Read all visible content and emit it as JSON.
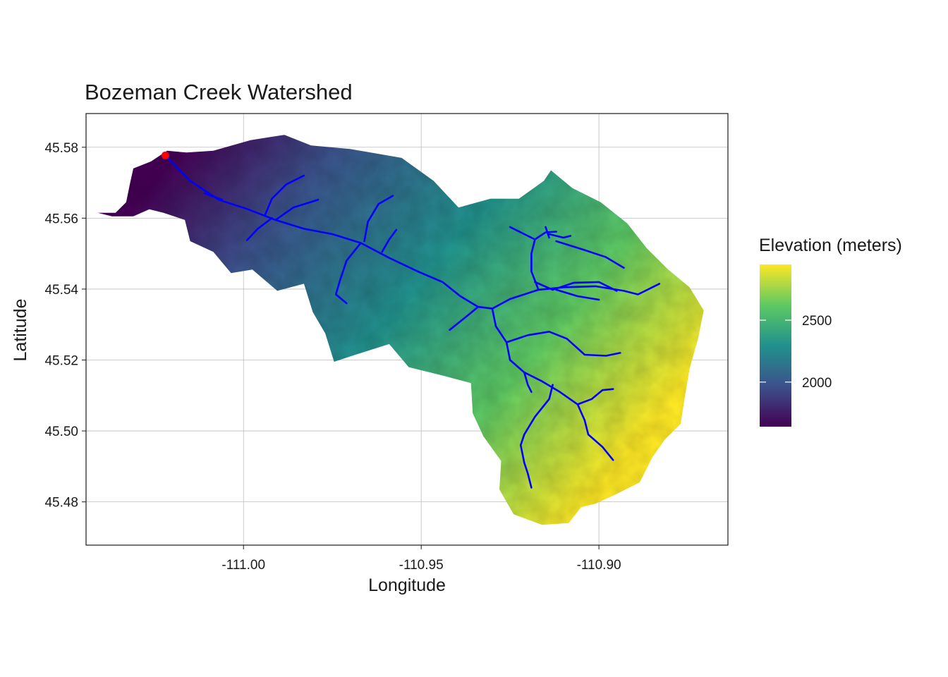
{
  "title": "Bozeman Creek Watershed",
  "x_axis": {
    "label": "Longitude",
    "ticks": [
      -111.0,
      -110.95,
      -110.9
    ],
    "tick_labels": [
      "-111.00",
      "-110.95",
      "-110.90"
    ],
    "range": [
      -111.0443,
      -110.8637
    ]
  },
  "y_axis": {
    "label": "Latitude",
    "ticks": [
      45.48,
      45.5,
      45.52,
      45.54,
      45.56,
      45.58
    ],
    "tick_labels": [
      "45.48",
      "45.50",
      "45.52",
      "45.54",
      "45.56",
      "45.58"
    ],
    "range": [
      45.4678,
      45.5895
    ]
  },
  "legend": {
    "title": "Elevation (meters)",
    "placement": "right",
    "range": [
      1640,
      2950
    ],
    "ticks": [
      2000,
      2500
    ],
    "tick_labels": [
      "2000",
      "2500"
    ],
    "colormap": [
      "#440154",
      "#3b528b",
      "#21918c",
      "#5ec962",
      "#fde725"
    ]
  },
  "colors": {
    "stream": "#0000ff",
    "outlet": "#ff0000",
    "panel_border": "#1a1a1a",
    "grid": "#bdbdbd"
  },
  "outlet": {
    "lon": -111.022,
    "lat": 45.5777
  },
  "watershed_boundary": [
    [
      -111.041,
      45.5615
    ],
    [
      -111.036,
      45.5615
    ],
    [
      -111.033,
      45.5645
    ],
    [
      -111.032,
      45.5695
    ],
    [
      -111.031,
      45.574
    ],
    [
      -111.026,
      45.576
    ],
    [
      -111.0215,
      45.579
    ],
    [
      -111.016,
      45.5785
    ],
    [
      -111.0085,
      45.579
    ],
    [
      -110.998,
      45.582
    ],
    [
      -110.9885,
      45.5835
    ],
    [
      -110.981,
      45.5805
    ],
    [
      -110.97,
      45.5795
    ],
    [
      -110.9555,
      45.577
    ],
    [
      -110.9465,
      45.5705
    ],
    [
      -110.9395,
      45.563
    ],
    [
      -110.9305,
      45.5655
    ],
    [
      -110.9225,
      45.5655
    ],
    [
      -110.9155,
      45.5705
    ],
    [
      -110.9135,
      45.5735
    ],
    [
      -110.9075,
      45.5685
    ],
    [
      -110.8995,
      45.5645
    ],
    [
      -110.892,
      45.5585
    ],
    [
      -110.8865,
      45.5515
    ],
    [
      -110.8805,
      45.5455
    ],
    [
      -110.8745,
      45.5405
    ],
    [
      -110.8705,
      45.534
    ],
    [
      -110.872,
      45.5265
    ],
    [
      -110.8745,
      45.5175
    ],
    [
      -110.876,
      45.5085
    ],
    [
      -110.877,
      45.502
    ],
    [
      -110.8815,
      45.4975
    ],
    [
      -110.885,
      45.4925
    ],
    [
      -110.8885,
      45.4855
    ],
    [
      -110.8955,
      45.482
    ],
    [
      -110.901,
      45.4795
    ],
    [
      -110.905,
      45.4785
    ],
    [
      -110.9085,
      45.474
    ],
    [
      -110.916,
      45.4735
    ],
    [
      -110.924,
      45.4765
    ],
    [
      -110.928,
      45.4835
    ],
    [
      -110.9275,
      45.4915
    ],
    [
      -110.9325,
      45.4985
    ],
    [
      -110.9355,
      45.505
    ],
    [
      -110.936,
      45.5135
    ],
    [
      -110.9435,
      45.5155
    ],
    [
      -110.9535,
      45.518
    ],
    [
      -110.959,
      45.5245
    ],
    [
      -110.9685,
      45.5215
    ],
    [
      -110.9745,
      45.5195
    ],
    [
      -110.977,
      45.5275
    ],
    [
      -110.9805,
      45.5335
    ],
    [
      -110.983,
      45.5415
    ],
    [
      -110.9905,
      45.5395
    ],
    [
      -110.9975,
      45.5455
    ],
    [
      -111.0035,
      45.5445
    ],
    [
      -111.0085,
      45.5505
    ],
    [
      -111.015,
      45.5535
    ],
    [
      -111.0165,
      45.5595
    ],
    [
      -111.0225,
      45.5615
    ],
    [
      -111.0265,
      45.5625
    ],
    [
      -111.031,
      45.5605
    ],
    [
      -111.037,
      45.5605
    ]
  ],
  "streams": [
    {
      "name": "main stem",
      "points": [
        [
          -111.022,
          45.5777
        ],
        [
          -111.015,
          45.5705
        ],
        [
          -111.007,
          45.5652
        ],
        [
          -110.999,
          45.5626
        ],
        [
          -110.991,
          45.5595
        ],
        [
          -110.983,
          45.557
        ],
        [
          -110.975,
          45.5555
        ],
        [
          -110.967,
          45.553
        ],
        [
          -110.959,
          45.5488
        ],
        [
          -110.951,
          45.545
        ],
        [
          -110.944,
          45.542
        ],
        [
          -110.939,
          45.538
        ],
        [
          -110.934,
          45.535
        ],
        [
          -110.93,
          45.5345
        ]
      ]
    },
    {
      "name": "trib north 1",
      "points": [
        [
          -111.011,
          45.567
        ],
        [
          -111.006,
          45.5652
        ]
      ]
    },
    {
      "name": "trib north 2",
      "points": [
        [
          -110.994,
          45.5607
        ],
        [
          -110.992,
          45.5655
        ],
        [
          -110.988,
          45.5695
        ],
        [
          -110.983,
          45.572
        ]
      ]
    },
    {
      "name": "trib north 3",
      "points": [
        [
          -110.991,
          45.5595
        ],
        [
          -110.986,
          45.563
        ],
        [
          -110.979,
          45.5652
        ]
      ]
    },
    {
      "name": "trib south 1",
      "points": [
        [
          -110.992,
          45.56
        ],
        [
          -110.996,
          45.557
        ],
        [
          -110.999,
          45.5538
        ]
      ]
    },
    {
      "name": "trib south 2",
      "points": [
        [
          -110.967,
          45.553
        ],
        [
          -110.971,
          45.548
        ],
        [
          -110.973,
          45.542
        ],
        [
          -110.974,
          45.5385
        ],
        [
          -110.971,
          45.536
        ]
      ]
    },
    {
      "name": "trib north 4",
      "points": [
        [
          -110.966,
          45.5535
        ],
        [
          -110.965,
          45.559
        ],
        [
          -110.962,
          45.564
        ],
        [
          -110.958,
          45.5663
        ]
      ]
    },
    {
      "name": "trib north 5",
      "points": [
        [
          -110.961,
          45.5505
        ],
        [
          -110.959,
          45.554
        ],
        [
          -110.957,
          45.5567
        ]
      ]
    },
    {
      "name": "trib south 3",
      "points": [
        [
          -110.934,
          45.535
        ],
        [
          -110.937,
          45.5325
        ],
        [
          -110.942,
          45.5285
        ]
      ]
    },
    {
      "name": "east branch",
      "points": [
        [
          -110.93,
          45.5345
        ],
        [
          -110.925,
          45.5372
        ],
        [
          -110.917,
          45.5398
        ],
        [
          -110.91,
          45.5405
        ],
        [
          -110.901,
          45.5408
        ],
        [
          -110.893,
          45.5395
        ],
        [
          -110.889,
          45.5385
        ],
        [
          -110.883,
          45.5415
        ]
      ]
    },
    {
      "name": "east branch head",
      "points": [
        [
          -110.917,
          45.5398
        ],
        [
          -110.919,
          45.545
        ],
        [
          -110.919,
          45.55
        ],
        [
          -110.918,
          45.554
        ],
        [
          -110.915,
          45.556
        ],
        [
          -110.912,
          45.5562
        ]
      ]
    },
    {
      "name": "east sub 1",
      "points": [
        [
          -110.918,
          45.554
        ],
        [
          -110.921,
          45.5555
        ],
        [
          -110.925,
          45.5575
        ]
      ]
    },
    {
      "name": "east sub 2",
      "points": [
        [
          -110.914,
          45.5545
        ],
        [
          -110.915,
          45.5575
        ]
      ]
    },
    {
      "name": "east sub 3",
      "points": [
        [
          -110.914,
          45.5555
        ],
        [
          -110.91,
          45.5545
        ],
        [
          -110.908,
          45.555
        ]
      ]
    },
    {
      "name": "east sub 4",
      "points": [
        [
          -110.912,
          45.5535
        ],
        [
          -110.904,
          45.551
        ],
        [
          -110.898,
          45.549
        ],
        [
          -110.893,
          45.546
        ]
      ]
    },
    {
      "name": "east sub 5",
      "points": [
        [
          -110.918,
          45.542
        ],
        [
          -110.913,
          45.5398
        ],
        [
          -110.907,
          45.5418
        ],
        [
          -110.9,
          45.542
        ],
        [
          -110.895,
          45.5395
        ]
      ]
    },
    {
      "name": "east sub 6",
      "points": [
        [
          -110.912,
          45.5398
        ],
        [
          -110.906,
          45.538
        ],
        [
          -110.9,
          45.537
        ]
      ]
    },
    {
      "name": "south branch",
      "points": [
        [
          -110.93,
          45.5345
        ],
        [
          -110.929,
          45.5295
        ],
        [
          -110.926,
          45.525
        ],
        [
          -110.925,
          45.52
        ],
        [
          -110.921,
          45.5165
        ],
        [
          -110.916,
          45.514
        ],
        [
          -110.911,
          45.511
        ],
        [
          -110.906,
          45.5075
        ],
        [
          -110.902,
          45.509
        ],
        [
          -110.899,
          45.5115
        ],
        [
          -110.896,
          45.5118
        ]
      ]
    },
    {
      "name": "south sub 1",
      "points": [
        [
          -110.926,
          45.525
        ],
        [
          -110.92,
          45.527
        ],
        [
          -110.914,
          45.528
        ],
        [
          -110.909,
          45.526
        ],
        [
          -110.904,
          45.5215
        ],
        [
          -110.898,
          45.5212
        ],
        [
          -110.894,
          45.522
        ]
      ]
    },
    {
      "name": "south sub 2",
      "points": [
        [
          -110.921,
          45.5165
        ],
        [
          -110.92,
          45.513
        ],
        [
          -110.919,
          45.511
        ]
      ]
    },
    {
      "name": "south sub 3",
      "points": [
        [
          -110.913,
          45.513
        ],
        [
          -110.914,
          45.509
        ],
        [
          -110.918,
          45.504
        ],
        [
          -110.921,
          45.499
        ],
        [
          -110.922,
          45.496
        ],
        [
          -110.921,
          45.491
        ],
        [
          -110.92,
          45.488
        ],
        [
          -110.919,
          45.484
        ]
      ]
    },
    {
      "name": "south sub 4",
      "points": [
        [
          -110.906,
          45.5075
        ],
        [
          -110.904,
          45.503
        ],
        [
          -110.903,
          45.499
        ],
        [
          -110.899,
          45.4955
        ],
        [
          -110.896,
          45.4918
        ]
      ]
    }
  ]
}
